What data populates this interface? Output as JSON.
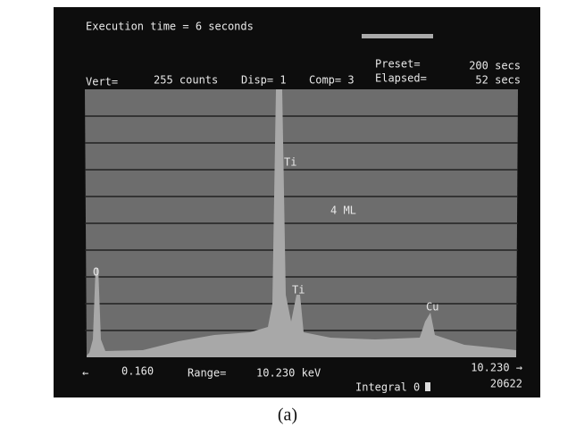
{
  "screen": {
    "header": {
      "execution": "Execution time =  6 seconds",
      "vert": "Vert=",
      "vert_value": "255 counts",
      "disp": "Disp= 1",
      "comp": "Comp= 3",
      "preset": "Preset=",
      "preset_value": "200 secs",
      "elapsed": "Elapsed=",
      "elapsed_value": "52 secs"
    },
    "peaks": [
      {
        "label": "Ti"
      },
      {
        "label": "4 ML"
      },
      {
        "label": "O"
      },
      {
        "label": "Ti"
      },
      {
        "label": "Cu"
      }
    ],
    "footer": {
      "arrow_left": "←",
      "start": "0.160",
      "range": "Range=",
      "range_value": "10.230 keV",
      "end": "10.230 →",
      "integral": "Integral 0",
      "count": "20622"
    }
  },
  "caption": "(a)"
}
